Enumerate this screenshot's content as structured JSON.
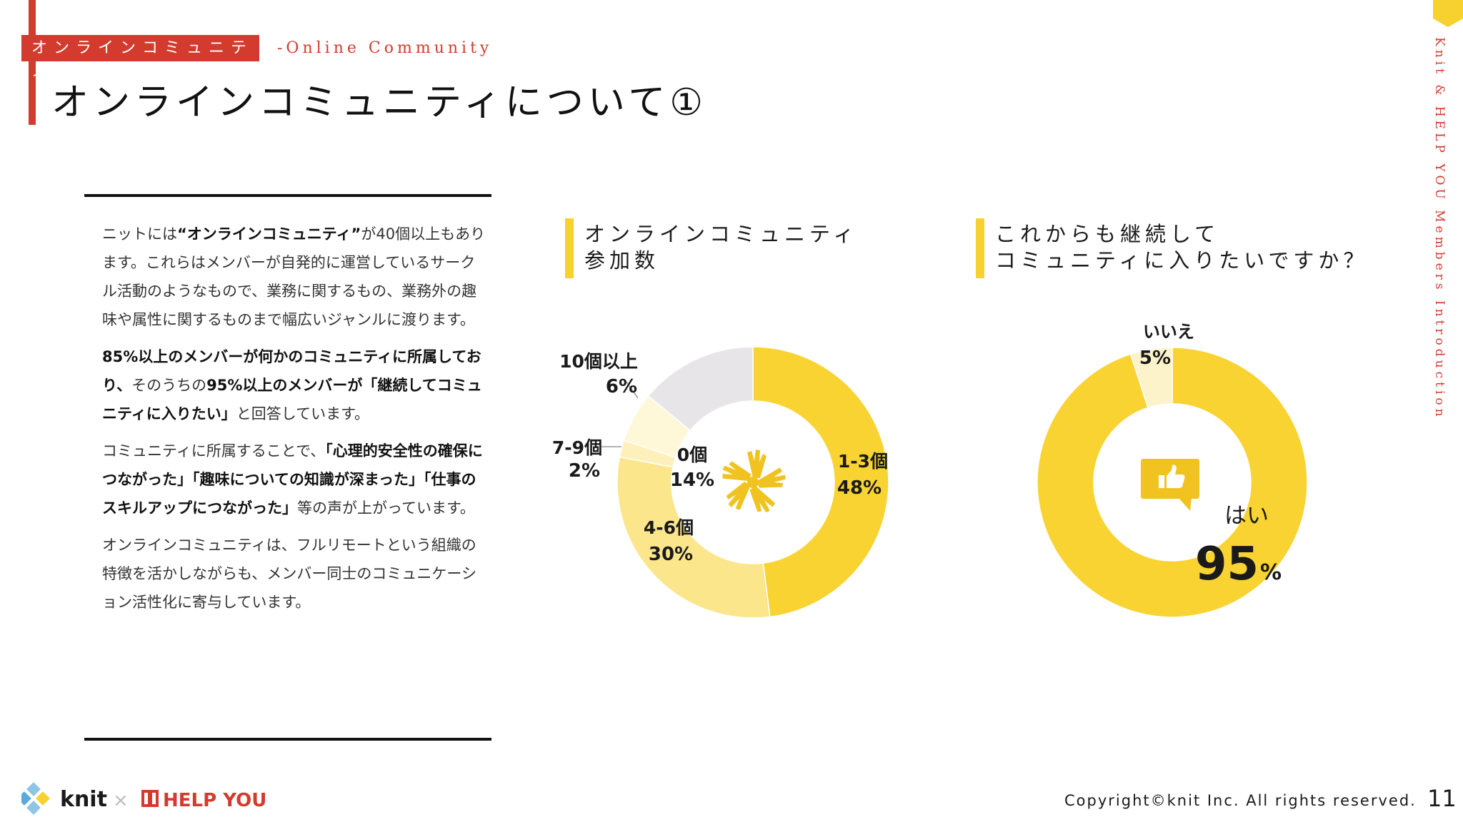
{
  "header": {
    "category": "オンラインコミュニティ",
    "category_en": "-Online Community",
    "title": "オンラインコミュニティについて①"
  },
  "sidebar": {
    "vertical_text": "Knit & HELP YOU  Members Introduction"
  },
  "body": {
    "p1": [
      {
        "text": "ニットには",
        "bold": false
      },
      {
        "text": "“オンラインコミュニティ”",
        "bold": true
      },
      {
        "text": "が40個以上もあります。これらはメンバーが自発的に運営しているサークル活動のようなもので、業務に関するもの、業務外の趣味や属性に関するものまで幅広いジャンルに渡ります。",
        "bold": false
      }
    ],
    "p2": [
      {
        "text": "85%以上のメンバーが何かのコミュニティに所属しており、",
        "bold": true
      },
      {
        "text": "そのうちの",
        "bold": false
      },
      {
        "text": "95%以上のメンバーが「継続してコミュニティに入りたい」",
        "bold": true
      },
      {
        "text": "と回答しています。",
        "bold": false
      }
    ],
    "p3": [
      {
        "text": "コミュニティに所属することで、",
        "bold": false
      },
      {
        "text": "「心理的安全性の確保につながった」「趣味についての知識が深まった」「仕事のスキルアップにつながった」",
        "bold": true
      },
      {
        "text": "等の声が上がっています。",
        "bold": false
      }
    ],
    "p4": [
      {
        "text": "オンラインコミュニティは、フルリモートという組織の特徴を活かしながらも、メンバー同士のコミュニケーション活性化に寄与しています。",
        "bold": false
      }
    ]
  },
  "chart_data": [
    {
      "type": "pie",
      "variant": "donut",
      "title": "オンラインコミュニティ\n参加数",
      "title_lines": [
        "オンラインコミュニティ",
        "参加数"
      ],
      "slices": [
        {
          "label": "1-3個",
          "value": 48,
          "pct_label": "48%",
          "color": "#f9d332"
        },
        {
          "label": "4-6個",
          "value": 30,
          "pct_label": "30%",
          "color": "#fbe68c"
        },
        {
          "label": "7-9個",
          "value": 2,
          "pct_label": "2%",
          "color": "#fdf0bb"
        },
        {
          "label": "10個以上",
          "value": 6,
          "pct_label": "6%",
          "color": "#fef7d8"
        },
        {
          "label": "0個",
          "value": 14,
          "pct_label": "14%",
          "color": "#e7e5e8"
        }
      ],
      "center_icon": "hands-together-icon"
    },
    {
      "type": "pie",
      "variant": "donut",
      "title": "これからも継続して\nコミュニティに入りたいですか？",
      "title_lines": [
        "これからも継続して",
        "コミュニティに入りたいですか？"
      ],
      "slices": [
        {
          "label": "はい",
          "value": 95,
          "pct_label": "95",
          "pct_unit": "%",
          "color": "#f9d332"
        },
        {
          "label": "いいえ",
          "value": 5,
          "pct_label": "5%",
          "color": "#fdf3cb"
        }
      ],
      "center_icon": "thumbs-up-bubble-icon"
    }
  ],
  "footer": {
    "brand_knit": "knit",
    "times": "×",
    "brand_helpyou": "HELP YOU",
    "copyright": "Copyright©knit Inc. All rights reserved.",
    "page_number": "11"
  },
  "colors": {
    "accent_red": "#d23b2e",
    "accent_yellow": "#f7d22e"
  }
}
